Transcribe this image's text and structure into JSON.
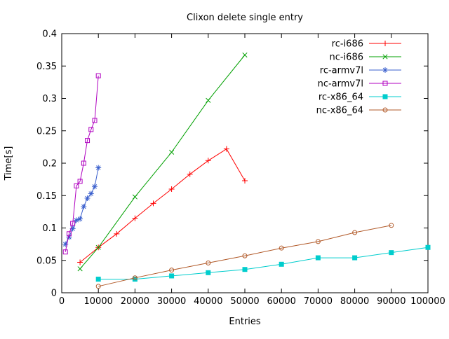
{
  "chart_data": {
    "type": "line",
    "title": "Clixon delete single entry",
    "xlabel": "Entries",
    "ylabel": "Time[s]",
    "xlim": [
      0,
      100000
    ],
    "ylim": [
      0,
      0.4
    ],
    "grid": false,
    "legend_position": "top-right-inside",
    "background_color": "#ffffff",
    "axis_color": "#000000",
    "x_ticks": {
      "values": [
        0,
        10000,
        20000,
        30000,
        40000,
        50000,
        60000,
        70000,
        80000,
        90000,
        100000
      ],
      "labels": [
        "0",
        "10000",
        "20000",
        "30000",
        "40000",
        "50000",
        "60000",
        "70000",
        "80000",
        "90000",
        "100000"
      ]
    },
    "y_ticks": {
      "values": [
        0,
        0.05,
        0.1,
        0.15,
        0.2,
        0.25,
        0.3,
        0.35,
        0.4
      ],
      "labels": [
        "0",
        "0.05",
        "0.1",
        "0.15",
        "0.2",
        "0.25",
        "0.3",
        "0.35",
        "0.4"
      ]
    },
    "series": [
      {
        "name": "rc-i686",
        "color": "#ff0000",
        "marker": "plus",
        "points": [
          [
            5000,
            0.047
          ],
          [
            10000,
            0.07
          ],
          [
            15000,
            0.091
          ],
          [
            20000,
            0.115
          ],
          [
            25000,
            0.138
          ],
          [
            30000,
            0.16
          ],
          [
            35000,
            0.183
          ],
          [
            40000,
            0.204
          ],
          [
            45000,
            0.222
          ],
          [
            50000,
            0.173
          ]
        ]
      },
      {
        "name": "nc-i686",
        "color": "#00a000",
        "marker": "cross",
        "points": [
          [
            5000,
            0.037
          ],
          [
            10000,
            0.07
          ],
          [
            20000,
            0.148
          ],
          [
            30000,
            0.217
          ],
          [
            40000,
            0.297
          ],
          [
            50000,
            0.367
          ]
        ]
      },
      {
        "name": "rc-armv7l",
        "color": "#3a5fcd",
        "marker": "asterisk",
        "points": [
          [
            1000,
            0.075
          ],
          [
            2000,
            0.086
          ],
          [
            3000,
            0.099
          ],
          [
            4000,
            0.112
          ],
          [
            5000,
            0.114
          ],
          [
            6000,
            0.133
          ],
          [
            7000,
            0.146
          ],
          [
            8000,
            0.153
          ],
          [
            9000,
            0.164
          ],
          [
            10000,
            0.193
          ]
        ]
      },
      {
        "name": "nc-armv7l",
        "color": "#b000c0",
        "marker": "square-open",
        "points": [
          [
            1000,
            0.063
          ],
          [
            2000,
            0.091
          ],
          [
            3000,
            0.107
          ],
          [
            4000,
            0.165
          ],
          [
            5000,
            0.172
          ],
          [
            6000,
            0.2
          ],
          [
            7000,
            0.235
          ],
          [
            8000,
            0.252
          ],
          [
            9000,
            0.266
          ],
          [
            10000,
            0.335
          ]
        ]
      },
      {
        "name": "rc-x86_64",
        "color": "#00cdcd",
        "marker": "square-filled",
        "points": [
          [
            10000,
            0.021
          ],
          [
            20000,
            0.021
          ],
          [
            30000,
            0.026
          ],
          [
            40000,
            0.031
          ],
          [
            50000,
            0.036
          ],
          [
            60000,
            0.044
          ],
          [
            70000,
            0.054
          ],
          [
            80000,
            0.054
          ],
          [
            90000,
            0.062
          ],
          [
            100000,
            0.07
          ]
        ]
      },
      {
        "name": "nc-x86_64",
        "color": "#b15928",
        "marker": "circle-open",
        "points": [
          [
            10000,
            0.01
          ],
          [
            20000,
            0.023
          ],
          [
            30000,
            0.035
          ],
          [
            40000,
            0.046
          ],
          [
            50000,
            0.057
          ],
          [
            60000,
            0.069
          ],
          [
            70000,
            0.079
          ],
          [
            80000,
            0.093
          ],
          [
            90000,
            0.104
          ]
        ]
      }
    ]
  }
}
